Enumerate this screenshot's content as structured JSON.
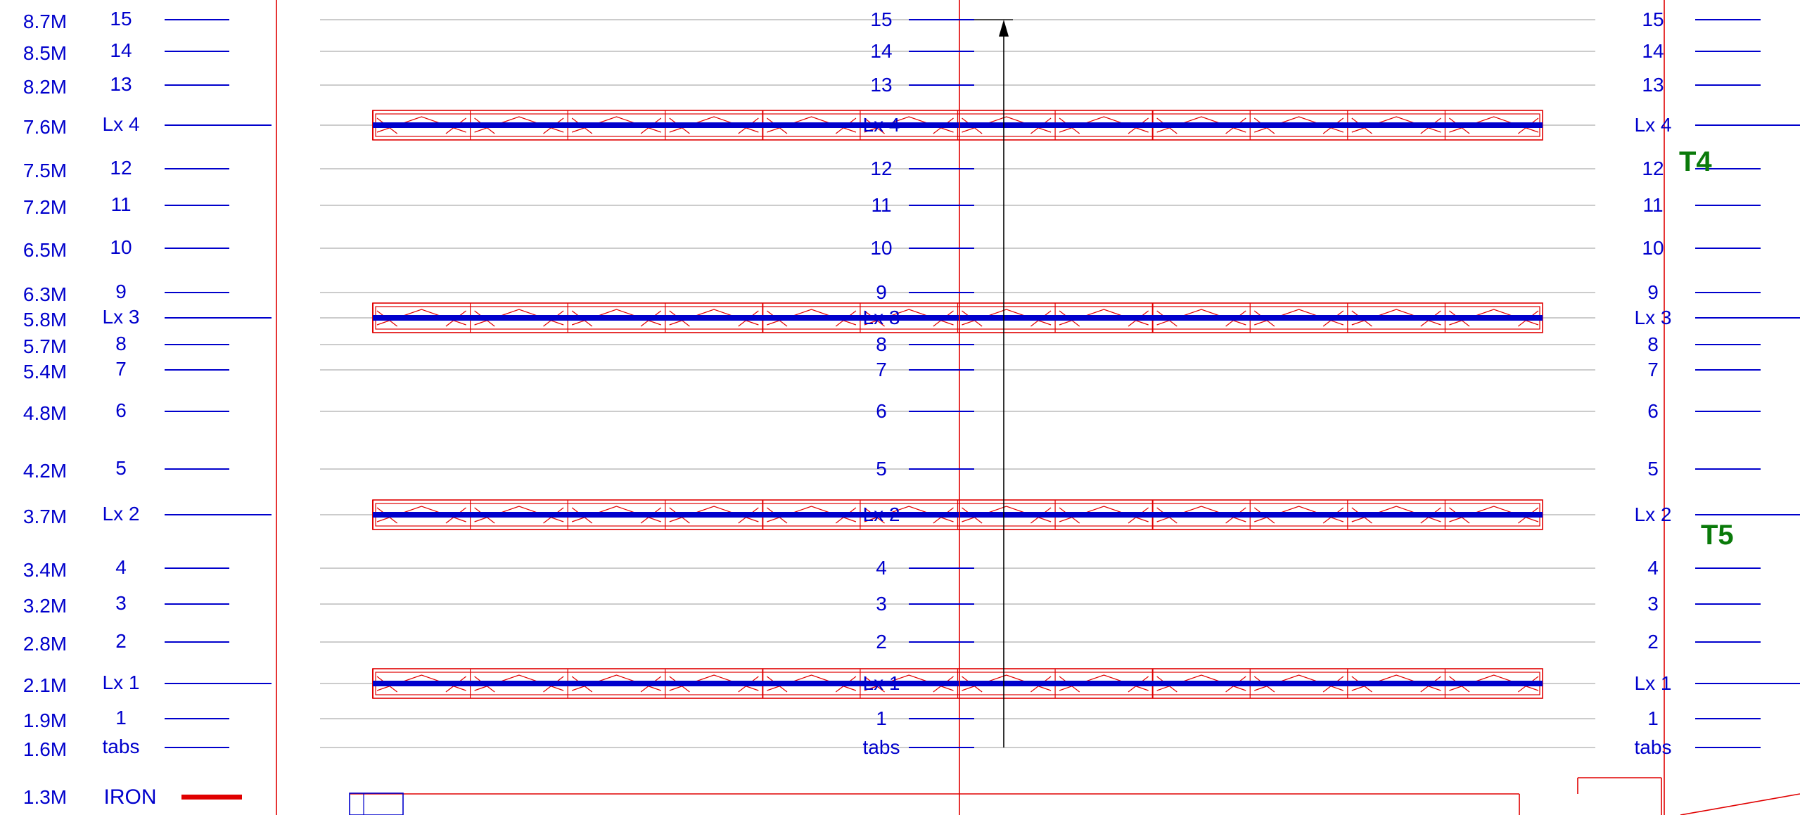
{
  "colors": {
    "line_label": "#0000cc",
    "batten": "#0000cc",
    "truss": "#e00000",
    "iron": "#e00000",
    "tag": "#0a7a0a",
    "grid": "#cccccc",
    "axis_line": "#000000"
  },
  "rows": [
    {
      "id": "r15",
      "height": "8.7M",
      "label": "15",
      "kind": "line"
    },
    {
      "id": "r14",
      "height": "8.5M",
      "label": "14",
      "kind": "line"
    },
    {
      "id": "r13",
      "height": "8.2M",
      "label": "13",
      "kind": "line"
    },
    {
      "id": "lx4",
      "height": "7.6M",
      "label": "Lx 4",
      "kind": "lx",
      "center_label": "Lx 4"
    },
    {
      "id": "r12",
      "height": "7.5M",
      "label": "12",
      "kind": "line"
    },
    {
      "id": "r11",
      "height": "7.2M",
      "label": "11",
      "kind": "line"
    },
    {
      "id": "r10",
      "height": "6.5M",
      "label": "10",
      "kind": "line"
    },
    {
      "id": "r9",
      "height": "6.3M",
      "label": "9",
      "kind": "line"
    },
    {
      "id": "lx3",
      "height": "5.8M",
      "label": "Lx 3",
      "kind": "lx",
      "center_label": "Lx 3"
    },
    {
      "id": "r8",
      "height": "5.7M",
      "label": "8",
      "kind": "line"
    },
    {
      "id": "r7",
      "height": "5.4M",
      "label": "7",
      "kind": "line"
    },
    {
      "id": "r6",
      "height": "4.8M",
      "label": "6",
      "kind": "line"
    },
    {
      "id": "r5",
      "height": "4.2M",
      "label": "5",
      "kind": "line"
    },
    {
      "id": "lx2",
      "height": "3.7M",
      "label": "Lx 2",
      "kind": "lx",
      "center_label": "Lx 2"
    },
    {
      "id": "r4",
      "height": "3.4M",
      "label": "4",
      "kind": "line"
    },
    {
      "id": "r3",
      "height": "3.2M",
      "label": "3",
      "kind": "line"
    },
    {
      "id": "r2",
      "height": "2.8M",
      "label": "2",
      "kind": "line"
    },
    {
      "id": "lx1",
      "height": "2.1M",
      "label": "Lx 1",
      "kind": "lx",
      "center_label": "Lx 1"
    },
    {
      "id": "r1",
      "height": "1.9M",
      "label": "1",
      "kind": "line"
    },
    {
      "id": "tabs",
      "height": "1.6M",
      "label": "tabs",
      "kind": "line"
    }
  ],
  "iron": {
    "height": "1.3M",
    "label": "IRON"
  },
  "tags": {
    "t4": "T4",
    "t5": "T5"
  }
}
